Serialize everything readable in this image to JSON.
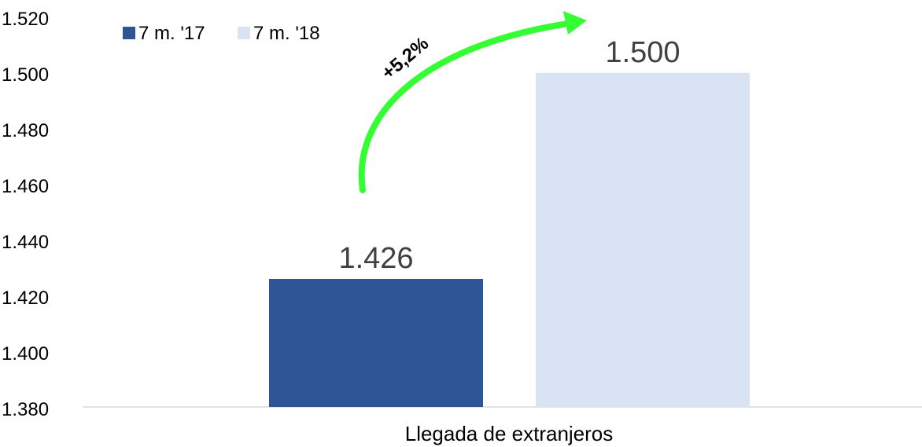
{
  "chart_data": {
    "type": "bar",
    "categories": [
      "Llegada de extranjeros"
    ],
    "series": [
      {
        "name": "7 m. '17",
        "values": [
          1426
        ],
        "color": "#2F5597"
      },
      {
        "name": "7 m. '18",
        "values": [
          1500
        ],
        "color": "#DAE3F3"
      }
    ],
    "data_labels": [
      "1.426",
      "1.500"
    ],
    "yticks": [
      "1.380",
      "1.400",
      "1.420",
      "1.440",
      "1.460",
      "1.480",
      "1.500",
      "1.520"
    ],
    "ylim": [
      1380,
      1520
    ],
    "xlabel": "",
    "ylabel": "",
    "title": "",
    "legend_position": "top-left",
    "grid": false,
    "annotation": {
      "text": "+5,2%",
      "arrow_color": "#33FF33"
    }
  }
}
